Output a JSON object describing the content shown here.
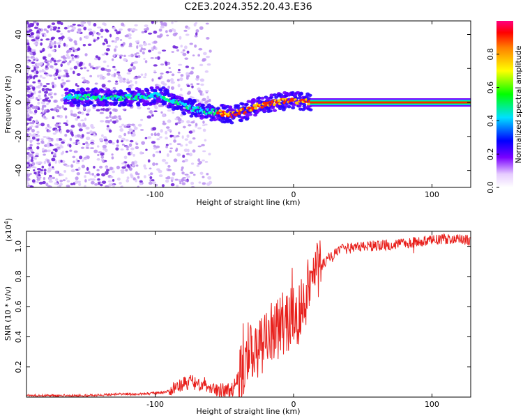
{
  "title": "C2E3.2024.352.20.43.E36",
  "chart_data": [
    {
      "type": "heatmap",
      "xlabel": "Height of straight line (km)",
      "ylabel": "Frequency (Hz)",
      "xlim": [
        -193,
        128
      ],
      "ylim": [
        -50,
        48
      ],
      "x_ticks": [
        -100,
        0,
        100
      ],
      "y_ticks": [
        40,
        20,
        0,
        -20,
        -40
      ],
      "colorbar": {
        "label": "Normalized spectral amplitude",
        "range": [
          0,
          1
        ],
        "ticks": [
          "0.0",
          "0.2",
          "0.4",
          "0.6",
          "0.8"
        ]
      },
      "ridge_frequency": {
        "x": [
          -160,
          -140,
          -120,
          -100,
          -95,
          -85,
          -75,
          -65,
          -55,
          -45,
          -35,
          -25,
          -15,
          -5,
          5,
          12,
          128
        ],
        "y": [
          3,
          3,
          3,
          4,
          4,
          0,
          -3,
          -5,
          -6,
          -7,
          -5,
          -2,
          0,
          1,
          1,
          0,
          0
        ]
      },
      "noise_region_x": [
        -193,
        -60
      ]
    },
    {
      "type": "line",
      "xlabel": "Height of straight line (km)",
      "ylabel": "SNR (10 * v/v)",
      "y_multiplier_label": "(x10",
      "y_multiplier_exp": "4",
      "xlim": [
        -193,
        128
      ],
      "ylim": [
        0,
        1.1
      ],
      "x_ticks": [
        -100,
        0,
        100
      ],
      "y_ticks": [
        0.2,
        0.4,
        0.6,
        0.8,
        1.0
      ],
      "y_tick_labels": [
        "0.2",
        "0.4",
        "0.6",
        "0.8",
        "1.0"
      ],
      "series": [
        {
          "color": "#e8201c",
          "x": [
            -193,
            -150,
            -125,
            -110,
            -95,
            -85,
            -75,
            -65,
            -55,
            -45,
            -38,
            -32,
            -26,
            -20,
            -14,
            -8,
            -2,
            4,
            10,
            18,
            25,
            35,
            50,
            70,
            90,
            110,
            128
          ],
          "y": [
            0.01,
            0.01,
            0.02,
            0.02,
            0.03,
            0.06,
            0.1,
            0.09,
            0.05,
            0.04,
            0.15,
            0.3,
            0.33,
            0.38,
            0.45,
            0.5,
            0.52,
            0.55,
            0.72,
            0.85,
            0.92,
            0.98,
            1.0,
            1.01,
            1.03,
            1.05,
            1.04
          ]
        }
      ]
    }
  ]
}
